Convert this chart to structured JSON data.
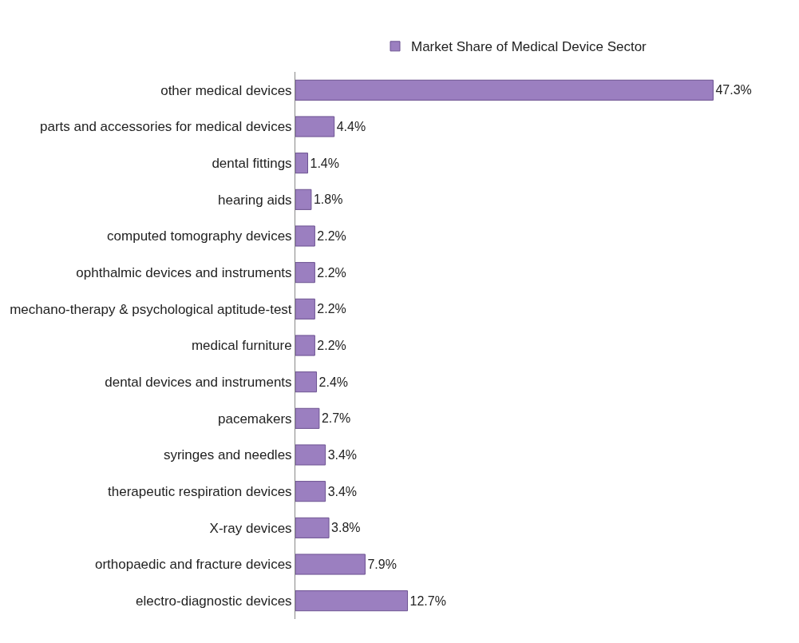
{
  "chart_data": {
    "type": "bar",
    "orientation": "horizontal",
    "legend": "top",
    "categories": [
      "other medical devices",
      "parts and accessories for medical devices",
      "dental fittings",
      "hearing aids",
      "computed tomography devices",
      "ophthalmic devices and instruments",
      "mechano-therapy & psychological aptitude-test",
      "medical furniture",
      "dental devices and instruments",
      "pacemakers",
      "syringes and needles",
      "therapeutic respiration devices",
      "X-ray devices",
      "orthopaedic and fracture devices",
      "electro-diagnostic devices"
    ],
    "series": [
      {
        "name": "Market Share of Medical Device Sector",
        "color": "#9b7fc0",
        "values": [
          47.3,
          4.4,
          1.4,
          1.8,
          2.2,
          2.2,
          2.2,
          2.2,
          2.4,
          2.7,
          3.4,
          3.4,
          3.8,
          7.9,
          12.7
        ],
        "value_labels": [
          "47.3%",
          "4.4%",
          "1.4%",
          "1.8%",
          "2.2%",
          "2.2%",
          "2.2%",
          "2.2%",
          "2.4%",
          "2.7%",
          "3.4%",
          "3.4%",
          "3.8%",
          "7.9%",
          "12.7%"
        ]
      }
    ]
  }
}
